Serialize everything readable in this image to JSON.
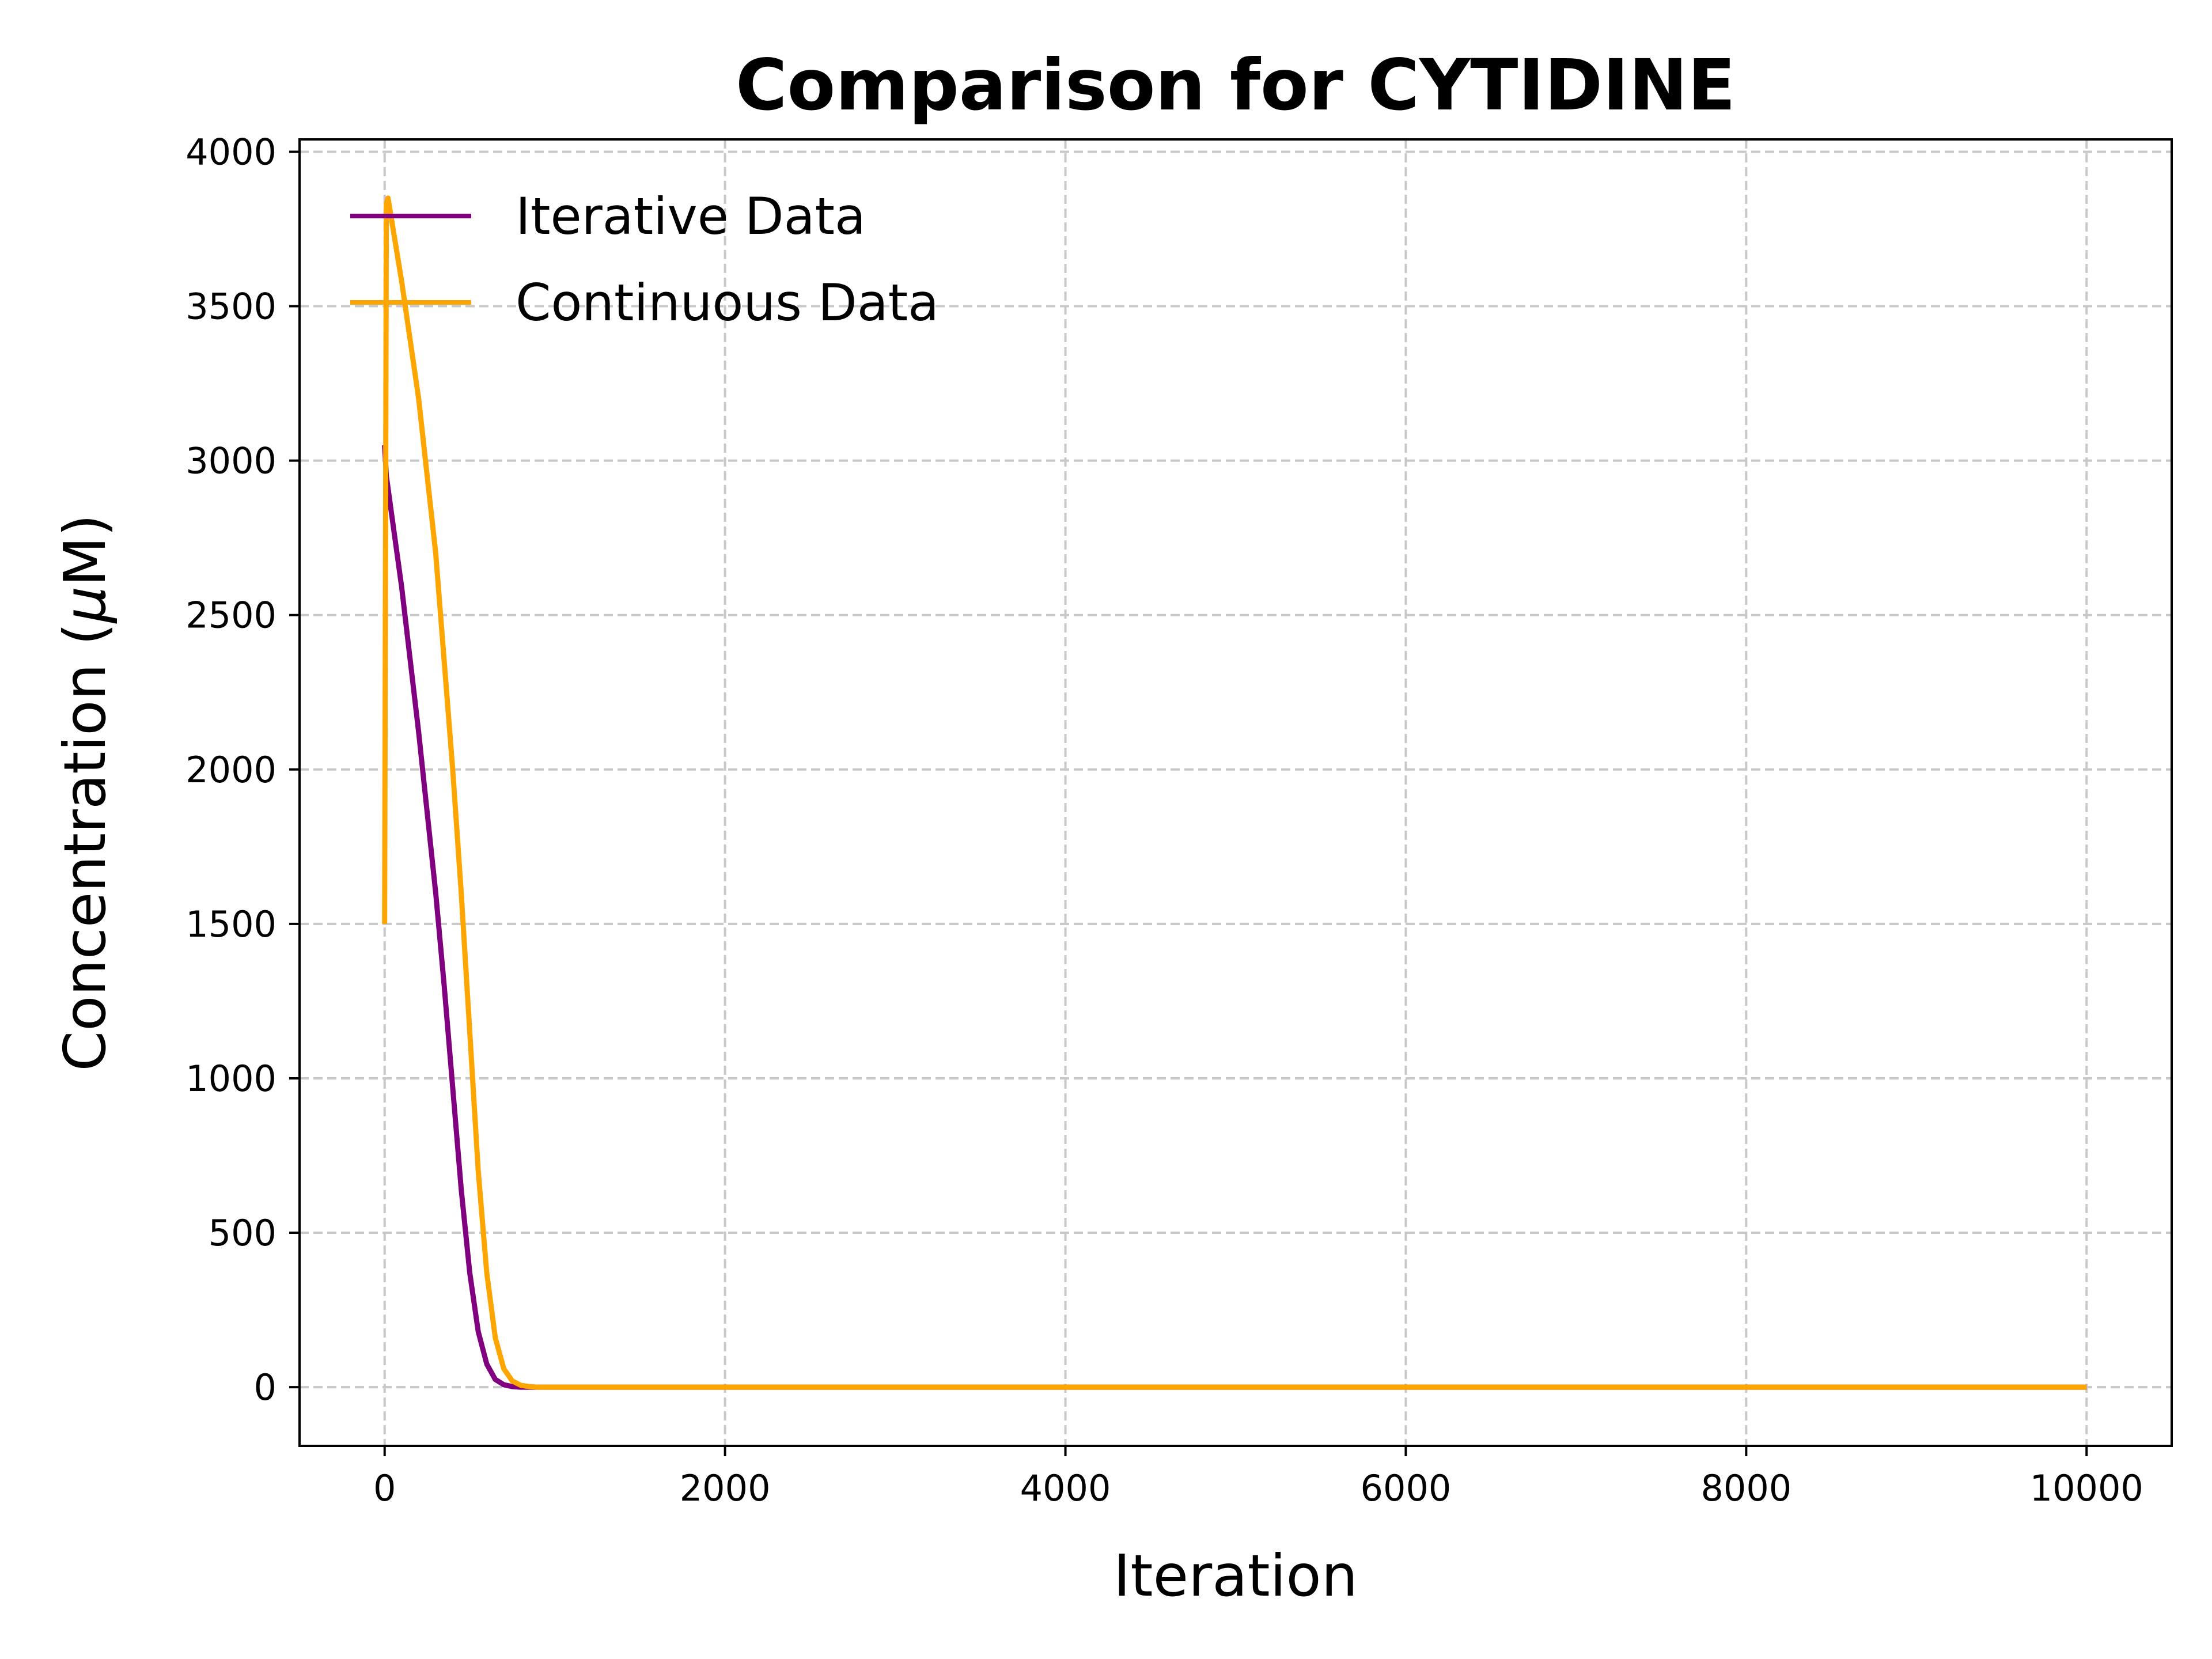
{
  "chart_data": {
    "type": "line",
    "title": "Comparison for CYTIDINE",
    "xlabel": "Iteration",
    "ylabel_prefix": "Concentration (",
    "ylabel_mu": "μ",
    "ylabel_suffix": "M)",
    "xlim": [
      -500,
      10500
    ],
    "ylim": [
      -190,
      4040
    ],
    "x_ticks": [
      0,
      2000,
      4000,
      6000,
      8000,
      10000
    ],
    "y_ticks": [
      0,
      500,
      1000,
      1500,
      2000,
      2500,
      3000,
      3500,
      4000
    ],
    "x_tick_labels": [
      "0",
      "2000",
      "4000",
      "6000",
      "8000",
      "10000"
    ],
    "y_tick_labels": [
      "0",
      "500",
      "1000",
      "1500",
      "2000",
      "2500",
      "3000",
      "3500",
      "4000"
    ],
    "grid": true,
    "legend_position": "top-left",
    "series": [
      {
        "name": "Iterative Data",
        "color": "#800080",
        "x": [
          0,
          10,
          100,
          200,
          300,
          350,
          400,
          450,
          500,
          550,
          600,
          650,
          700,
          750,
          800,
          900,
          1000,
          2000,
          4000,
          6000,
          8000,
          10000
        ],
        "y": [
          3050,
          2950,
          2590,
          2120,
          1600,
          1300,
          970,
          640,
          370,
          180,
          75,
          25,
          8,
          2,
          0,
          0,
          0,
          0,
          0,
          0,
          0,
          0
        ]
      },
      {
        "name": "Continuous Data",
        "color": "#ffa500",
        "x": [
          0,
          10,
          20,
          100,
          200,
          300,
          400,
          450,
          500,
          550,
          600,
          650,
          700,
          750,
          800,
          850,
          900,
          1000,
          2000,
          4000,
          6000,
          8000,
          10000
        ],
        "y": [
          1500,
          3830,
          3850,
          3580,
          3200,
          2700,
          2000,
          1600,
          1150,
          700,
          370,
          160,
          60,
          20,
          6,
          2,
          0,
          0,
          0,
          0,
          0,
          0,
          0
        ]
      }
    ]
  }
}
